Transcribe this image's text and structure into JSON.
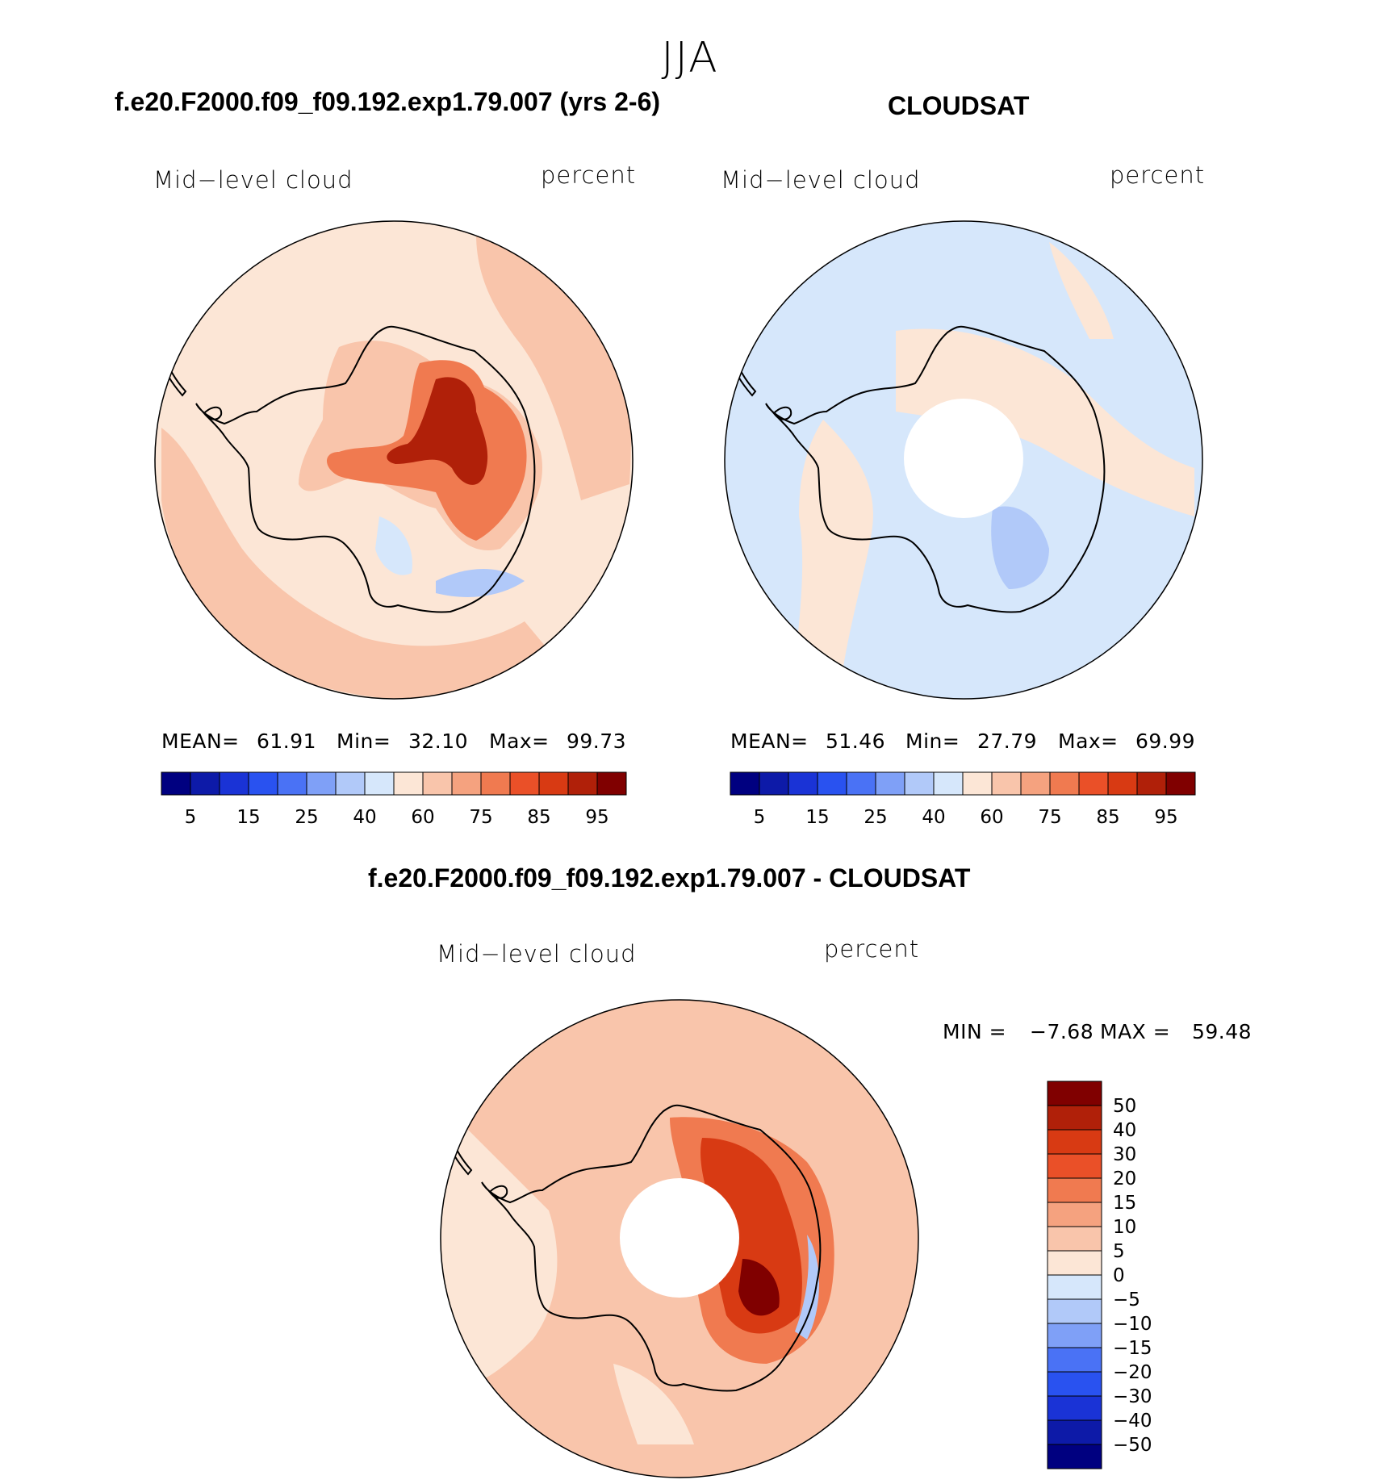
{
  "season": "JJA",
  "panels": [
    {
      "id": "model",
      "title": "f.e20.F2000.f09_f09.192.exp1.79.007 (yrs 2-6)",
      "left_label": "Mid−level cloud",
      "right_label": "percent",
      "mean_label": "MEAN=",
      "mean": "61.91",
      "min_label": "Min=",
      "min": "32.10",
      "max_label": "Max=",
      "max": "99.73"
    },
    {
      "id": "obs",
      "title": "CLOUDSAT",
      "left_label": "Mid−level cloud",
      "right_label": "percent",
      "mean_label": "MEAN=",
      "mean": "51.46",
      "min_label": "Min=",
      "min": "27.79",
      "max_label": "Max=",
      "max": "69.99"
    }
  ],
  "diff": {
    "title": "f.e20.F2000.f09_f09.192.exp1.79.007 - CLOUDSAT",
    "left_label": "Mid−level cloud",
    "right_label": "percent",
    "min_label": "MIN =",
    "min": "−7.68",
    "max_label": "MAX =",
    "max": "59.48"
  },
  "chart_data": [
    {
      "type": "heatmap",
      "title": "f.e20.F2000.f09_f09.192.exp1.79.007 (yrs 2-6)",
      "variable": "Mid-level cloud",
      "units": "percent",
      "projection": "south polar stereographic",
      "mean": 61.91,
      "min": 32.1,
      "max": 99.73,
      "colorbar_ticks": [
        "5",
        "15",
        "25",
        "40",
        "60",
        "75",
        "85",
        "95"
      ]
    },
    {
      "type": "heatmap",
      "title": "CLOUDSAT",
      "variable": "Mid-level cloud",
      "units": "percent",
      "projection": "south polar stereographic",
      "mean": 51.46,
      "min": 27.79,
      "max": 69.99,
      "colorbar_ticks": [
        "5",
        "15",
        "25",
        "40",
        "60",
        "75",
        "85",
        "95"
      ]
    },
    {
      "type": "heatmap",
      "title": "f.e20.F2000.f09_f09.192.exp1.79.007 - CLOUDSAT",
      "variable": "Mid-level cloud",
      "units": "percent",
      "projection": "south polar stereographic",
      "min": -7.68,
      "max": 59.48,
      "colorbar_ticks": [
        "50",
        "40",
        "30",
        "20",
        "15",
        "10",
        "5",
        "0",
        "−5",
        "−10",
        "−15",
        "−20",
        "−30",
        "−40",
        "−50"
      ]
    }
  ],
  "colors": {
    "abs_scale": [
      "#000080",
      "#0d1aa8",
      "#1a33d6",
      "#2952f0",
      "#4a72f5",
      "#7fa0f7",
      "#b1c9f9",
      "#d6e7fb",
      "#fce6d6",
      "#f9c5ab",
      "#f5a27f",
      "#f07a50",
      "#ea5028",
      "#d83a13",
      "#b02009",
      "#800000"
    ],
    "diff_scale": [
      "#800000",
      "#b02009",
      "#d83a13",
      "#ea5028",
      "#f07a50",
      "#f5a27f",
      "#f9c5ab",
      "#fce6d6",
      "#d6e7fb",
      "#b1c9f9",
      "#7fa0f7",
      "#4a72f5",
      "#2952f0",
      "#1a33d6",
      "#0d1aa8",
      "#000080"
    ]
  }
}
